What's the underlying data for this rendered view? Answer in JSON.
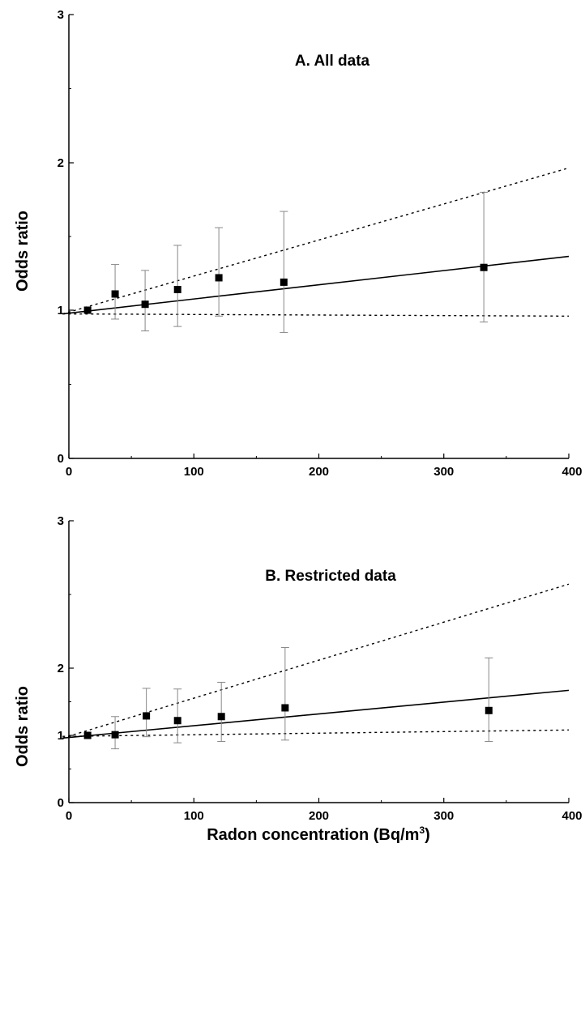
{
  "chart_data": [
    {
      "type": "scatter",
      "title": "A.  All data",
      "xlabel": "",
      "ylabel": "Odds ratio",
      "xlim": [
        0,
        400
      ],
      "ylim": [
        0,
        3
      ],
      "xticks": [
        "0",
        "100",
        "200",
        "300",
        "400"
      ],
      "yticks": [
        "0",
        "1",
        "2",
        "3"
      ],
      "grid": false,
      "series": [
        {
          "marker": "square",
          "x": [
            15,
            37,
            61,
            87,
            120,
            172,
            332
          ],
          "y": [
            1.0,
            1.11,
            1.04,
            1.14,
            1.22,
            1.19,
            1.29
          ],
          "ci_lower": [
            1.0,
            0.94,
            0.86,
            0.89,
            0.96,
            0.85,
            0.92
          ],
          "ci_upper": [
            1.0,
            1.31,
            1.27,
            1.44,
            1.56,
            1.67,
            1.8
          ]
        }
      ],
      "fit_lines": [
        {
          "style": "solid",
          "x": [
            -5,
            400
          ],
          "y": [
            0.975,
            1.365
          ]
        },
        {
          "style": "dotted",
          "x": [
            -5,
            400
          ],
          "y": [
            0.975,
            1.965
          ]
        },
        {
          "style": "dotted",
          "x": [
            -5,
            400
          ],
          "y": [
            0.975,
            0.96
          ]
        }
      ]
    },
    {
      "type": "scatter",
      "title": "B.  Restricted data",
      "xlabel": "Radon concentration (Bq/m³)",
      "ylabel": "Odds ratio",
      "xlim": [
        0,
        400
      ],
      "ylim": [
        0,
        3
      ],
      "xticks": [
        "0",
        "100",
        "200",
        "300",
        "400"
      ],
      "yticks": [
        "0",
        "1",
        "2",
        "3"
      ],
      "grid": false,
      "series": [
        {
          "marker": "square",
          "x": [
            15,
            37,
            62,
            87,
            122,
            173,
            336
          ],
          "y": [
            1.0,
            1.01,
            1.29,
            1.22,
            1.28,
            1.41,
            1.37
          ],
          "ci_lower": [
            1.0,
            0.8,
            0.98,
            0.89,
            0.91,
            0.93,
            0.91
          ],
          "ci_upper": [
            1.0,
            1.28,
            1.7,
            1.69,
            1.79,
            2.14,
            2.07
          ]
        }
      ],
      "fit_lines": [
        {
          "style": "solid",
          "x": [
            -5,
            400
          ],
          "y": [
            0.96,
            1.67
          ]
        },
        {
          "style": "dotted",
          "x": [
            -5,
            400
          ],
          "y": [
            0.96,
            2.57
          ]
        },
        {
          "style": "dotted",
          "x": [
            -5,
            400
          ],
          "y": [
            0.985,
            1.08
          ]
        }
      ]
    }
  ]
}
